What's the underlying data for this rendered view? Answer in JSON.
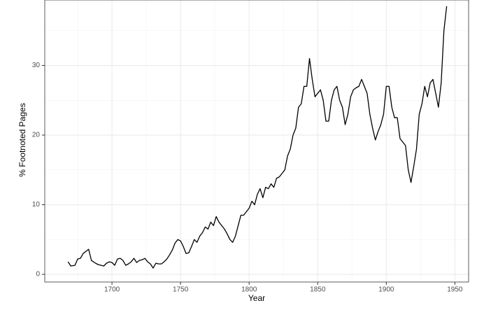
{
  "chart_data": {
    "type": "line",
    "x_label": "Year",
    "y_label": "% Footnoted Pages",
    "x": [
      1668,
      1670,
      1673,
      1675,
      1677,
      1679,
      1681,
      1683,
      1685,
      1688,
      1690,
      1692,
      1694,
      1696,
      1698,
      1700,
      1702,
      1704,
      1706,
      1708,
      1710,
      1712,
      1714,
      1716,
      1718,
      1720,
      1722,
      1724,
      1726,
      1728,
      1730,
      1732,
      1734,
      1736,
      1738,
      1740,
      1742,
      1744,
      1746,
      1748,
      1750,
      1752,
      1754,
      1756,
      1758,
      1760,
      1762,
      1764,
      1766,
      1768,
      1770,
      1772,
      1774,
      1776,
      1778,
      1780,
      1782,
      1784,
      1786,
      1788,
      1790,
      1792,
      1794,
      1796,
      1798,
      1800,
      1802,
      1804,
      1806,
      1808,
      1810,
      1812,
      1814,
      1816,
      1818,
      1820,
      1822,
      1824,
      1826,
      1828,
      1830,
      1832,
      1834,
      1836,
      1838,
      1840,
      1842,
      1844,
      1846,
      1848,
      1850,
      1852,
      1854,
      1856,
      1858,
      1860,
      1862,
      1864,
      1866,
      1868,
      1870,
      1872,
      1874,
      1876,
      1878,
      1880,
      1882,
      1884,
      1886,
      1888,
      1890,
      1892,
      1894,
      1896,
      1898,
      1900,
      1902,
      1904,
      1906,
      1908,
      1910,
      1912,
      1914,
      1916,
      1918,
      1920,
      1922,
      1924,
      1926,
      1928,
      1930,
      1932,
      1934,
      1936,
      1938,
      1940,
      1942,
      1944
    ],
    "series": [
      {
        "color": "#000000",
        "values": [
          1.8,
          1.2,
          1.3,
          2.2,
          2.3,
          3.0,
          3.3,
          3.6,
          2.0,
          1.6,
          1.4,
          1.3,
          1.2,
          1.6,
          1.8,
          1.7,
          1.3,
          2.2,
          2.3,
          2.0,
          1.3,
          1.5,
          1.8,
          2.3,
          1.7,
          2.0,
          2.1,
          2.3,
          1.8,
          1.5,
          0.9,
          1.6,
          1.5,
          1.5,
          1.8,
          2.2,
          2.8,
          3.5,
          4.5,
          5.0,
          4.8,
          4.0,
          3.0,
          3.1,
          4.0,
          5.0,
          4.6,
          5.5,
          6.0,
          6.8,
          6.5,
          7.5,
          7.0,
          8.3,
          7.5,
          7.0,
          6.5,
          5.8,
          5.0,
          4.6,
          5.5,
          7.0,
          8.5,
          8.5,
          9.0,
          9.5,
          10.5,
          10.0,
          11.5,
          12.3,
          11.0,
          12.5,
          12.3,
          13.0,
          12.5,
          13.8,
          14.0,
          14.5,
          15.0,
          17.0,
          18.0,
          20.0,
          21.0,
          24.0,
          24.5,
          27.0,
          27.0,
          31.0,
          28.0,
          25.5,
          26.0,
          26.5,
          25.0,
          22.0,
          22.0,
          25.0,
          26.5,
          27.0,
          25.0,
          24.0,
          21.5,
          23.0,
          25.5,
          26.5,
          26.8,
          27.0,
          28.0,
          27.0,
          26.0,
          23.0,
          21.0,
          19.3,
          20.5,
          21.5,
          23.0,
          27.0,
          27.0,
          24.0,
          22.5,
          22.5,
          19.5,
          19.0,
          18.5,
          15.0,
          13.2,
          15.5,
          18.0,
          23.0,
          24.5,
          27.0,
          25.5,
          27.5,
          28.0,
          26.0,
          24.0,
          27.5,
          35.0,
          38.5
        ]
      }
    ],
    "xlim": [
      1651,
      1960
    ],
    "ylim": [
      -1.1,
      39.4
    ],
    "xticks": [
      1700,
      1750,
      1800,
      1850,
      1900,
      1950
    ],
    "yticks": [
      0,
      10,
      20,
      30
    ],
    "x_minor_ticks": [
      1675,
      1725,
      1775,
      1825,
      1875,
      1925
    ],
    "y_minor_ticks": [
      5,
      15,
      25,
      35
    ],
    "grid": true
  }
}
